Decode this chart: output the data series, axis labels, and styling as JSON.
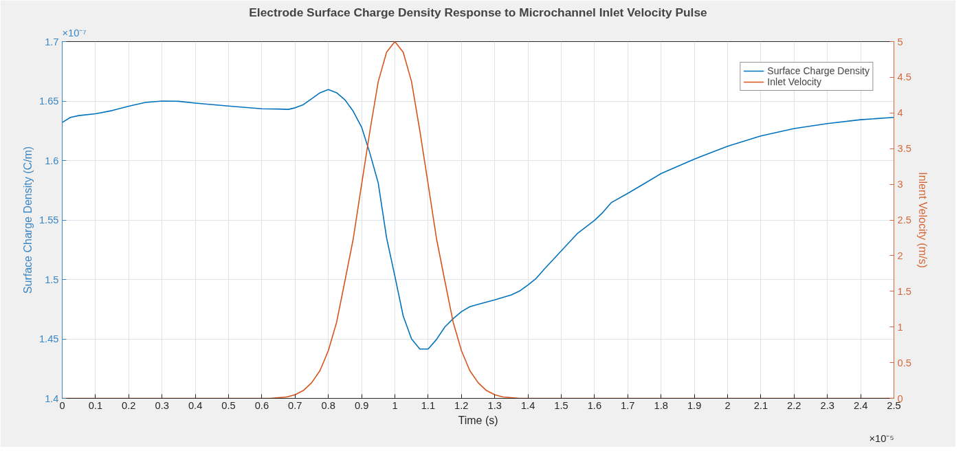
{
  "chart_data": {
    "type": "line",
    "title": "Electrode Surface Charge Density Response to Microchannel Inlet Velocity Pulse",
    "xlabel": "Time (s)",
    "ylabel": "Surface Charge Density (C/m)",
    "y2label": "Inlent Velocity (m/s)",
    "annotations": [
      "×10⁻⁷",
      "×10⁻⁵"
    ],
    "xlim": [
      0,
      2.5
    ],
    "xticks": [
      0,
      0.1,
      0.2,
      0.3,
      0.4,
      0.5,
      0.6,
      0.7,
      0.8,
      0.9,
      1,
      1.1,
      1.2,
      1.3,
      1.4,
      1.5,
      1.6,
      1.7,
      1.8,
      1.9,
      2,
      2.1,
      2.2,
      2.3,
      2.4,
      2.5
    ],
    "ylim": [
      1.4,
      1.7
    ],
    "yticks": [
      1.4,
      1.45,
      1.5,
      1.55,
      1.6,
      1.65,
      1.7
    ],
    "y2lim": [
      0,
      5
    ],
    "y2ticks": [
      0,
      0.5,
      1,
      1.5,
      2,
      2.5,
      3,
      3.5,
      4,
      4.5,
      5
    ],
    "grid": true,
    "legend": "top right",
    "line_style": "solid",
    "marker": "none",
    "series": [
      {
        "name": "Surface Charge Density",
        "color": "#0072bd",
        "x": [
          0,
          0.025,
          0.05,
          0.1,
          0.15,
          0.2,
          0.25,
          0.3,
          0.35,
          0.4,
          0.5,
          0.6,
          0.65,
          0.68,
          0.7,
          0.725,
          0.75,
          0.775,
          0.8,
          0.825,
          0.85,
          0.875,
          0.9,
          0.925,
          0.95,
          0.975,
          1.0,
          1.025,
          1.05,
          1.075,
          1.1,
          1.125,
          1.15,
          1.175,
          1.2,
          1.225,
          1.25,
          1.3,
          1.35,
          1.375,
          1.4,
          1.425,
          1.45,
          1.5,
          1.55,
          1.6,
          1.625,
          1.65,
          1.7,
          1.75,
          1.8,
          1.9,
          2.0,
          2.1,
          2.2,
          2.3,
          2.4,
          2.5
        ],
        "values": [
          1.632,
          1.6363,
          1.6378,
          1.6393,
          1.642,
          1.6457,
          1.6488,
          1.65,
          1.6498,
          1.6483,
          1.6458,
          1.6435,
          1.6433,
          1.643,
          1.6443,
          1.647,
          1.652,
          1.657,
          1.6597,
          1.657,
          1.651,
          1.6413,
          1.628,
          1.606,
          1.581,
          1.535,
          1.5027,
          1.4692,
          1.45,
          1.4415,
          1.4415,
          1.4495,
          1.46,
          1.467,
          1.4729,
          1.477,
          1.479,
          1.4828,
          1.487,
          1.4903,
          1.4953,
          1.501,
          1.509,
          1.524,
          1.539,
          1.5496,
          1.5563,
          1.5645,
          1.5724,
          1.5806,
          1.589,
          1.6012,
          1.612,
          1.6207,
          1.6269,
          1.6311,
          1.6343,
          1.6363
        ]
      },
      {
        "name": "Inlet Velocity",
        "color": "#d95319",
        "axis": "y2",
        "x": [
          0,
          0.6,
          0.625,
          0.65,
          0.675,
          0.7,
          0.725,
          0.75,
          0.775,
          0.8,
          0.825,
          0.85,
          0.875,
          0.9,
          0.925,
          0.95,
          0.975,
          1.0,
          1.025,
          1.05,
          1.075,
          1.1,
          1.125,
          1.15,
          1.175,
          1.2,
          1.225,
          1.25,
          1.275,
          1.3,
          1.325,
          1.35,
          1.375,
          1.4,
          2.5
        ],
        "values": [
          0,
          0,
          0,
          0.01,
          0.02,
          0.05,
          0.11,
          0.22,
          0.39,
          0.67,
          1.07,
          1.65,
          2.24,
          3.0,
          3.75,
          4.44,
          4.85,
          5,
          4.85,
          4.44,
          3.75,
          3.0,
          2.24,
          1.65,
          1.07,
          0.67,
          0.39,
          0.22,
          0.11,
          0.05,
          0.02,
          0.01,
          0,
          0,
          0
        ]
      }
    ]
  }
}
